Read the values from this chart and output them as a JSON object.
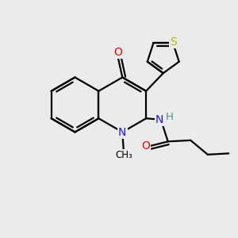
{
  "bg_color": "#ebebeb",
  "atom_colors": {
    "C": "#000000",
    "N": "#1a1aff",
    "O": "#ff0000",
    "S": "#b8b800",
    "H": "#4a9090"
  },
  "bond_color": "#000000",
  "bond_width": 1.6,
  "figsize": [
    3.0,
    3.0
  ],
  "dpi": 100,
  "xlim": [
    0,
    10
  ],
  "ylim": [
    0,
    10
  ]
}
